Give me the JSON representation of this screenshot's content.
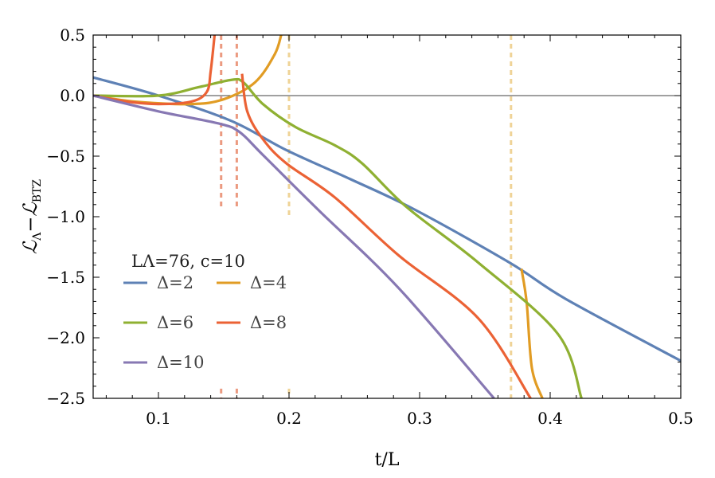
{
  "chart_data": {
    "type": "line",
    "title": "",
    "xlabel": "t/L",
    "ylabel": "ℒΛ−ℒBTZ",
    "ylabel_main": "ℒ",
    "ylabel_sub1": "Λ",
    "ylabel_mid": "−ℒ",
    "ylabel_sub2": "BTZ",
    "xlim": [
      0.05,
      0.5
    ],
    "ylim": [
      -2.5,
      0.5
    ],
    "xticks": [
      0.1,
      0.2,
      0.3,
      0.4,
      0.5
    ],
    "xtick_labels": [
      "0.1",
      "0.2",
      "0.3",
      "0.4",
      "0.5"
    ],
    "yticks": [
      0.5,
      0,
      -0.5,
      -1,
      -1.5,
      -2,
      -2.5
    ],
    "ytick_labels": [
      "0.5",
      "0.0",
      "−0.5",
      "−1.0",
      "−1.5",
      "−2.0",
      "−2.5"
    ],
    "legend_title": "LΛ=76, c=10",
    "legend_position": "lower-left",
    "series": [
      {
        "name": "Δ=2",
        "color": "#5e81b5",
        "segments": [
          [
            [
              0.05,
              0.15
            ],
            [
              0.1,
              0
            ],
            [
              0.156,
              -0.21
            ],
            [
              0.198,
              -0.45
            ],
            [
              0.247,
              -0.69
            ],
            [
              0.296,
              -0.94
            ],
            [
              0.369,
              -1.38
            ],
            [
              0.412,
              -1.68
            ],
            [
              0.5,
              -2.19
            ]
          ]
        ]
      },
      {
        "name": "Δ=4",
        "color": "#e19c24",
        "segments": [
          [
            [
              0.05,
              0
            ],
            [
              0.082,
              -0.05
            ],
            [
              0.125,
              -0.07
            ],
            [
              0.15,
              -0.03
            ],
            [
              0.174,
              0.11
            ],
            [
              0.189,
              0.34
            ],
            [
              0.194,
              0.5
            ]
          ],
          [
            [
              0.378,
              -1.43
            ],
            [
              0.382,
              -1.71
            ],
            [
              0.386,
              -2.25
            ],
            [
              0.394,
              -2.5
            ]
          ]
        ]
      },
      {
        "name": "Δ=6",
        "color": "#8fb032",
        "segments": [
          [
            [
              0.05,
              0
            ],
            [
              0.1,
              0
            ],
            [
              0.131,
              0.07
            ],
            [
              0.156,
              0.13
            ],
            [
              0.165,
              0.11
            ],
            [
              0.18,
              -0.07
            ],
            [
              0.205,
              -0.26
            ],
            [
              0.235,
              -0.41
            ],
            [
              0.256,
              -0.56
            ],
            [
              0.29,
              -0.92
            ],
            [
              0.345,
              -1.38
            ],
            [
              0.406,
              -1.97
            ],
            [
              0.424,
              -2.5
            ]
          ]
        ]
      },
      {
        "name": "Δ=8",
        "color": "#eb6235",
        "segments": [
          [
            [
              0.05,
              0
            ],
            [
              0.076,
              -0.05
            ],
            [
              0.1,
              -0.07
            ],
            [
              0.125,
              -0.05
            ],
            [
              0.137,
              0.03
            ],
            [
              0.14,
              0.2
            ],
            [
              0.143,
              0.5
            ]
          ],
          [
            [
              0.164,
              0.18
            ],
            [
              0.168,
              -0.13
            ],
            [
              0.18,
              -0.36
            ],
            [
              0.198,
              -0.56
            ],
            [
              0.235,
              -0.84
            ],
            [
              0.284,
              -1.32
            ],
            [
              0.345,
              -1.84
            ],
            [
              0.385,
              -2.5
            ]
          ]
        ]
      },
      {
        "name": "Δ=10",
        "color": "#8778b3",
        "segments": [
          [
            [
              0.05,
              0
            ],
            [
              0.1,
              -0.13
            ],
            [
              0.146,
              -0.23
            ],
            [
              0.162,
              -0.3
            ],
            [
              0.18,
              -0.49
            ],
            [
              0.223,
              -0.95
            ],
            [
              0.284,
              -1.59
            ],
            [
              0.357,
              -2.5
            ]
          ]
        ]
      }
    ],
    "vlines": [
      {
        "x": 0.148,
        "color": "#eb9a80",
        "ymin": -0.92
      },
      {
        "x": 0.16,
        "color": "#eb9a80",
        "ymin": -0.92
      },
      {
        "x": 0.2,
        "color": "#efd396",
        "ymin": -1.0
      },
      {
        "x": 0.37,
        "color": "#efd396",
        "ymin": -2.5
      }
    ]
  }
}
